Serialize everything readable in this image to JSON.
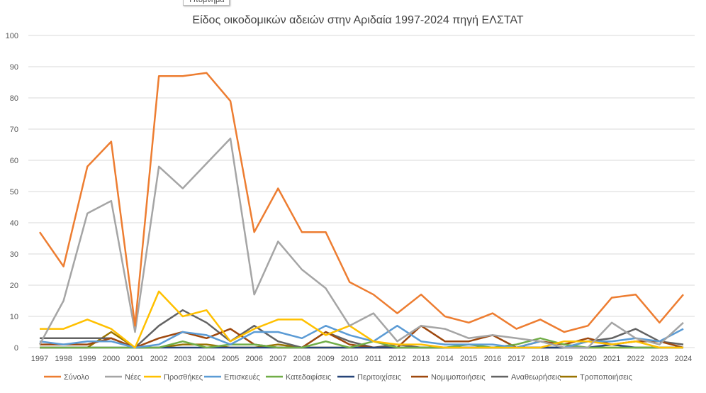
{
  "tooltip": "Υπόμνημα",
  "chart_data": {
    "type": "line",
    "title": "Είδος οικοδομικών αδειών στην Αριδαία 1997-2024  πηγή ΕΛΣΤΑΤ",
    "xlabel": "",
    "ylabel": "",
    "ylim": [
      0,
      100
    ],
    "yticks": [
      0,
      10,
      20,
      30,
      40,
      50,
      60,
      70,
      80,
      90,
      100
    ],
    "grid": true,
    "legend": "bottom",
    "categories": [
      "1997",
      "1998",
      "1999",
      "2000",
      "2001",
      "2002",
      "2003",
      "2004",
      "2005",
      "2006",
      "2007",
      "2008",
      "2009",
      "2010",
      "2011",
      "2012",
      "2013",
      "2014",
      "2015",
      "2016",
      "2017",
      "2018",
      "2019",
      "2020",
      "2021",
      "2022",
      "2023",
      "2024"
    ],
    "series": [
      {
        "name": "Σύνολο",
        "color": "#ED7D31",
        "values": [
          37,
          26,
          58,
          66,
          7,
          87,
          87,
          88,
          79,
          37,
          51,
          37,
          37,
          21,
          17,
          11,
          17,
          10,
          8,
          11,
          6,
          9,
          5,
          7,
          16,
          17,
          8,
          17
        ]
      },
      {
        "name": "Νέες",
        "color": "#A5A5A5",
        "values": [
          1,
          15,
          43,
          47,
          5,
          58,
          51,
          59,
          67,
          17,
          34,
          25,
          19,
          7,
          11,
          2,
          7,
          6,
          3,
          4,
          3,
          2,
          0,
          0,
          8,
          3,
          1,
          8
        ]
      },
      {
        "name": "Προσθήκες",
        "color": "#FFC000",
        "values": [
          6,
          6,
          9,
          6,
          0,
          18,
          10,
          12,
          2,
          6,
          9,
          9,
          4,
          7,
          2,
          1,
          1,
          0,
          0,
          0,
          0,
          0,
          2,
          2,
          1,
          2,
          0,
          0
        ]
      },
      {
        "name": "Επισκευές",
        "color": "#5B9BD5",
        "values": [
          2,
          1,
          2,
          2,
          0,
          1,
          5,
          4,
          1,
          5,
          5,
          3,
          7,
          4,
          2,
          7,
          2,
          1,
          1,
          1,
          0,
          2,
          0,
          2,
          2,
          3,
          2,
          6
        ]
      },
      {
        "name": "Κατεδαφίσεις",
        "color": "#70AD47",
        "values": [
          0,
          0,
          0,
          0,
          0,
          0,
          2,
          0,
          1,
          1,
          0,
          0,
          2,
          0,
          2,
          0,
          0,
          0,
          1,
          0,
          1,
          3,
          1,
          0,
          0,
          0,
          0,
          0
        ]
      },
      {
        "name": "Περιτοιχίσεις",
        "color": "#264478",
        "values": [
          0,
          0,
          0,
          0,
          0,
          0,
          0,
          0,
          0,
          0,
          0,
          0,
          0,
          0,
          0,
          0,
          0,
          0,
          0,
          0,
          0,
          0,
          0,
          0,
          1,
          0,
          0,
          0
        ]
      },
      {
        "name": "Νομιμοποιήσεις",
        "color": "#9E480E",
        "values": [
          1,
          1,
          1,
          3,
          0,
          3,
          5,
          3,
          6,
          1,
          0,
          0,
          5,
          1,
          0,
          0,
          7,
          2,
          2,
          4,
          0,
          2,
          1,
          3,
          1,
          2,
          2,
          0
        ]
      },
      {
        "name": "Αναθεωρήσεις",
        "color": "#636363",
        "values": [
          3,
          3,
          3,
          3,
          0,
          7,
          12,
          8,
          2,
          7,
          2,
          0,
          5,
          2,
          0,
          1,
          0,
          0,
          0,
          0,
          0,
          0,
          0,
          2,
          3,
          6,
          2,
          1
        ]
      },
      {
        "name": "Τροποποιήσεις",
        "color": "#997300",
        "values": [
          0,
          0,
          0,
          5,
          0,
          0,
          1,
          1,
          0,
          0,
          1,
          0,
          0,
          0,
          0,
          0,
          0,
          0,
          0,
          0,
          0,
          0,
          0,
          0,
          0,
          0,
          0,
          0
        ]
      }
    ]
  }
}
